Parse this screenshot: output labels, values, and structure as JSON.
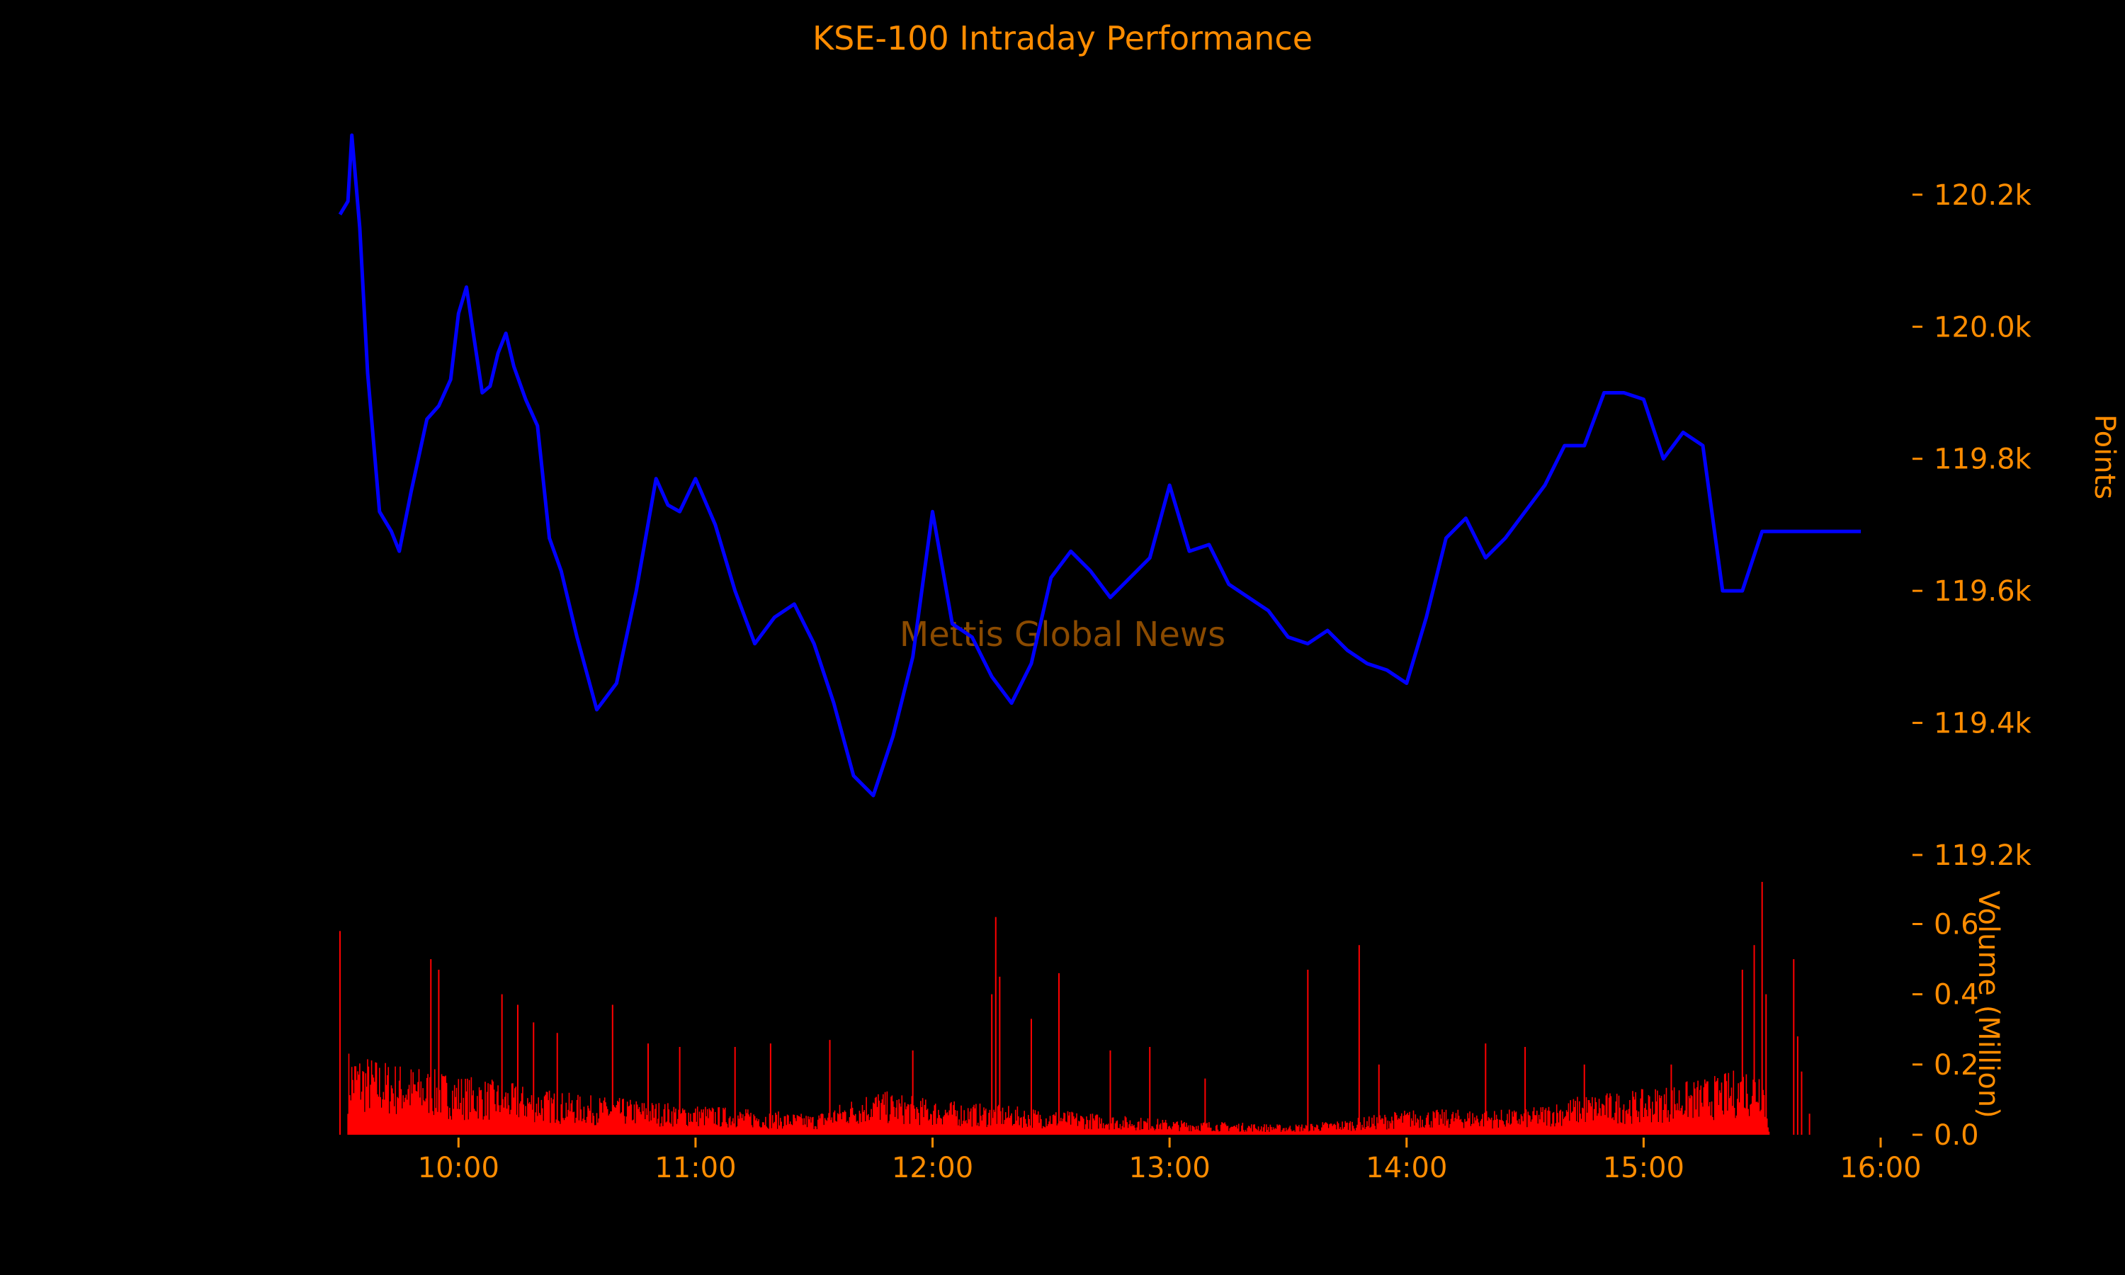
{
  "chart_data": {
    "type": "line",
    "title": "KSE-100 Intraday Performance",
    "watermark": "Mettis Global News",
    "colors": {
      "background": "#000000",
      "text": "#ff8c00",
      "price_line": "#0000ff",
      "volume_bars": "#ff0000"
    },
    "x": {
      "unit": "time (HH:MM)",
      "range": [
        "09:30",
        "16:00"
      ],
      "ticks": [
        "10:00",
        "11:00",
        "12:00",
        "13:00",
        "14:00",
        "15:00",
        "16:00"
      ]
    },
    "price": {
      "ylabel": "Points",
      "ylim": [
        119200,
        120350
      ],
      "ticks": [
        119200,
        119400,
        119600,
        119800,
        120000,
        120200
      ],
      "tick_labels": [
        "119.2k",
        "119.4k",
        "119.6k",
        "119.8k",
        "120.0k",
        "120.2k"
      ],
      "series": {
        "x": [
          "09:30",
          "09:32",
          "09:33",
          "09:35",
          "09:37",
          "09:40",
          "09:43",
          "09:45",
          "09:48",
          "09:52",
          "09:55",
          "09:58",
          "10:00",
          "10:02",
          "10:04",
          "10:06",
          "10:08",
          "10:10",
          "10:12",
          "10:14",
          "10:17",
          "10:20",
          "10:23",
          "10:26",
          "10:30",
          "10:35",
          "10:40",
          "10:45",
          "10:50",
          "10:53",
          "10:56",
          "11:00",
          "11:05",
          "11:10",
          "11:15",
          "11:20",
          "11:25",
          "11:30",
          "11:35",
          "11:40",
          "11:45",
          "11:50",
          "11:55",
          "12:00",
          "12:05",
          "12:10",
          "12:15",
          "12:20",
          "12:25",
          "12:30",
          "12:35",
          "12:40",
          "12:45",
          "12:50",
          "12:55",
          "13:00",
          "13:05",
          "13:10",
          "13:15",
          "13:20",
          "13:25",
          "13:30",
          "13:35",
          "13:40",
          "13:45",
          "13:50",
          "13:55",
          "14:00",
          "14:05",
          "14:10",
          "14:15",
          "14:20",
          "14:25",
          "14:30",
          "14:35",
          "14:40",
          "14:45",
          "14:50",
          "14:55",
          "15:00",
          "15:05",
          "15:10",
          "15:15",
          "15:20",
          "15:25",
          "15:30",
          "15:33",
          "15:40",
          "15:50",
          "15:55"
        ],
        "y": [
          120170,
          120190,
          120290,
          120150,
          119930,
          119720,
          119690,
          119660,
          119750,
          119860,
          119880,
          119920,
          120020,
          120060,
          119980,
          119900,
          119910,
          119960,
          119990,
          119940,
          119890,
          119850,
          119680,
          119630,
          119530,
          119420,
          119460,
          119600,
          119770,
          119730,
          119720,
          119770,
          119700,
          119600,
          119520,
          119560,
          119580,
          119520,
          119430,
          119320,
          119290,
          119380,
          119500,
          119720,
          119550,
          119530,
          119470,
          119430,
          119490,
          119620,
          119660,
          119630,
          119590,
          119620,
          119650,
          119760,
          119660,
          119670,
          119610,
          119590,
          119570,
          119530,
          119520,
          119540,
          119510,
          119490,
          119480,
          119460,
          119560,
          119680,
          119710,
          119650,
          119680,
          119720,
          119760,
          119820,
          119820,
          119900,
          119900,
          119890,
          119800,
          119840,
          119820,
          119600,
          119600,
          119690,
          119690,
          119690,
          119690,
          119690
        ]
      }
    },
    "volume": {
      "ylabel": "Volume (Million)",
      "ylim": [
        0,
        0.72
      ],
      "ticks": [
        0.0,
        0.2,
        0.4,
        0.6
      ],
      "tick_labels": [
        "0.0",
        "0.2",
        "0.4",
        "0.6"
      ],
      "baseline_profile": {
        "x": [
          "09:32",
          "09:40",
          "10:00",
          "10:30",
          "11:00",
          "11:30",
          "11:45",
          "12:00",
          "12:30",
          "13:00",
          "13:30",
          "13:45",
          "14:00",
          "14:30",
          "14:45",
          "15:00",
          "15:20",
          "15:30",
          "15:32"
        ],
        "y": [
          0.17,
          0.15,
          0.12,
          0.08,
          0.06,
          0.04,
          0.09,
          0.07,
          0.05,
          0.03,
          0.02,
          0.03,
          0.05,
          0.05,
          0.08,
          0.09,
          0.12,
          0.15,
          0.0
        ]
      },
      "spikes": {
        "x": [
          "09:30",
          "09:53",
          "09:55",
          "10:11",
          "10:15",
          "10:19",
          "10:25",
          "10:39",
          "10:48",
          "10:56",
          "11:10",
          "11:19",
          "11:34",
          "11:55",
          "12:15",
          "12:16",
          "12:17",
          "12:25",
          "12:32",
          "12:45",
          "12:55",
          "13:09",
          "13:35",
          "13:48",
          "13:53",
          "14:20",
          "14:30",
          "14:45",
          "15:07",
          "15:25",
          "15:28",
          "15:30",
          "15:31",
          "15:38",
          "15:39",
          "15:40",
          "15:42"
        ],
        "y": [
          0.58,
          0.5,
          0.47,
          0.4,
          0.37,
          0.32,
          0.29,
          0.37,
          0.26,
          0.25,
          0.25,
          0.26,
          0.27,
          0.24,
          0.4,
          0.62,
          0.45,
          0.33,
          0.46,
          0.24,
          0.25,
          0.16,
          0.47,
          0.54,
          0.2,
          0.26,
          0.25,
          0.2,
          0.2,
          0.47,
          0.54,
          0.72,
          0.4,
          0.5,
          0.28,
          0.18,
          0.06
        ]
      }
    }
  }
}
